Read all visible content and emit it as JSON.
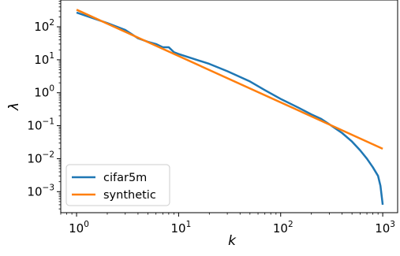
{
  "chart_data": {
    "type": "line",
    "title": "",
    "xlabel": "k",
    "ylabel": "λ",
    "x_scale": "log",
    "y_scale": "log",
    "xlim": [
      0.7,
      1400
    ],
    "ylim": [
      0.00023,
      650
    ],
    "x_ticks": [
      {
        "value": 1,
        "base": "10",
        "exp": "0"
      },
      {
        "value": 10,
        "base": "10",
        "exp": "1"
      },
      {
        "value": 100,
        "base": "10",
        "exp": "2"
      },
      {
        "value": 1000,
        "base": "10",
        "exp": "3"
      }
    ],
    "y_ticks": [
      {
        "value": 0.001,
        "base": "10",
        "exp": "−3"
      },
      {
        "value": 0.01,
        "base": "10",
        "exp": "−2"
      },
      {
        "value": 0.1,
        "base": "10",
        "exp": "−1"
      },
      {
        "value": 1,
        "base": "10",
        "exp": "0"
      },
      {
        "value": 10,
        "base": "10",
        "exp": "1"
      },
      {
        "value": 100,
        "base": "10",
        "exp": "2"
      }
    ],
    "legend_position": "lower-left",
    "series": [
      {
        "name": "cifar5m",
        "color": "#1f77b4",
        "x": [
          1,
          2,
          3,
          4,
          5,
          6,
          7,
          8,
          9,
          10,
          15,
          20,
          30,
          50,
          70,
          100,
          150,
          200,
          250,
          300,
          400,
          500,
          600,
          700,
          800,
          900,
          950,
          1000
        ],
        "y": [
          270,
          130,
          80,
          45,
          35,
          30,
          24,
          24,
          17,
          15,
          10,
          7.5,
          4.5,
          2.2,
          1.2,
          0.65,
          0.35,
          0.22,
          0.16,
          0.11,
          0.06,
          0.033,
          0.018,
          0.01,
          0.0055,
          0.003,
          0.0015,
          0.0004
        ]
      },
      {
        "name": "synthetic",
        "color": "#ff7f0e",
        "x": [
          1,
          1000
        ],
        "y": [
          330,
          0.02
        ]
      }
    ]
  }
}
